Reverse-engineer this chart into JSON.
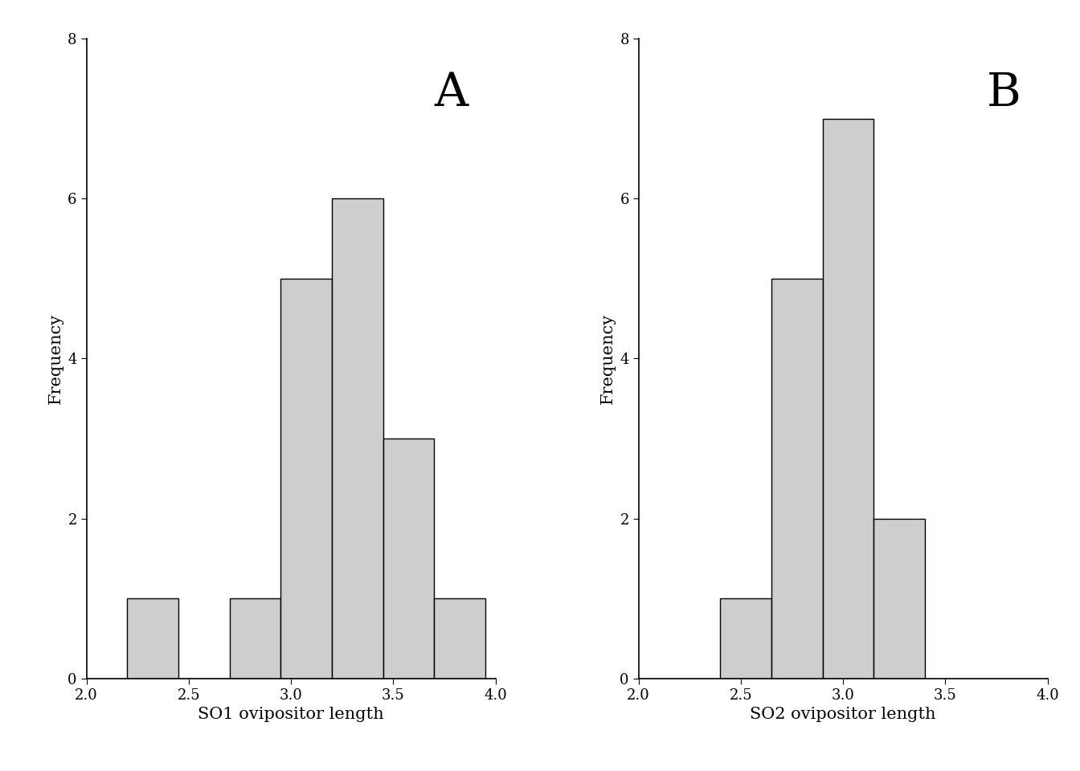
{
  "so1_bin_edges": [
    2.2,
    2.45,
    2.7,
    2.95,
    3.2,
    3.45,
    3.7
  ],
  "so1_counts": [
    1,
    0,
    1,
    5,
    6,
    3,
    1
  ],
  "so2_bin_edges": [
    2.4,
    2.65,
    2.9,
    3.15,
    3.4
  ],
  "so2_counts": [
    1,
    5,
    7,
    2
  ],
  "bar_color": "#bebebebe",
  "bar_edgecolor": "#000000",
  "xlim": [
    2.0,
    4.0
  ],
  "ylim": [
    0,
    8
  ],
  "xticks": [
    2.0,
    2.5,
    3.0,
    3.5,
    4.0
  ],
  "yticks": [
    0,
    2,
    4,
    6,
    8
  ],
  "xlabel_so1": "SO1 ovipositor length",
  "xlabel_so2": "SO2 ovipositor length",
  "ylabel": "Frequency",
  "label_A": "A",
  "label_B": "B",
  "background_color": "#ffffff"
}
